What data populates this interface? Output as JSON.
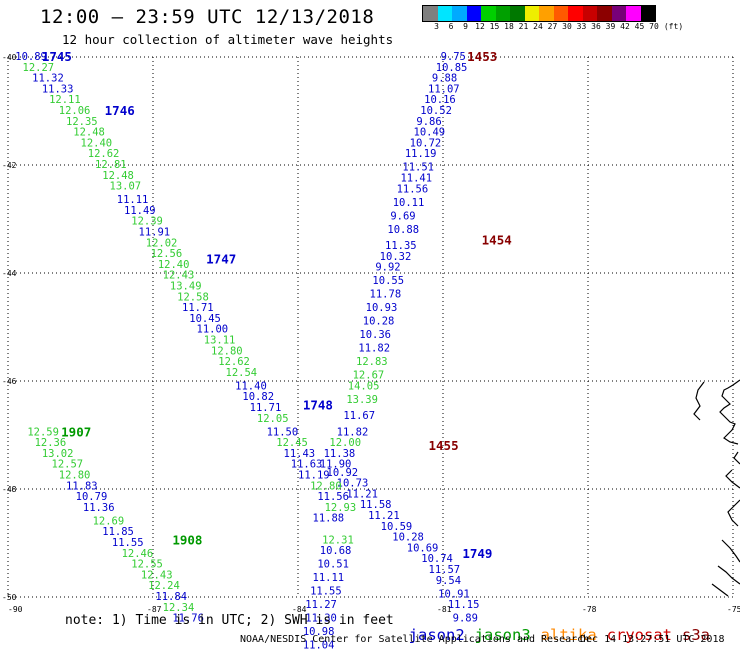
{
  "header": {
    "title": "12:00 — 23:59 UTC 12/13/2018",
    "subtitle": "12 hour collection of altimeter wave heights"
  },
  "color_scale": {
    "colors": [
      "#7f7f7f",
      "#00e5ff",
      "#00aaff",
      "#0000ff",
      "#00d000",
      "#00a000",
      "#007800",
      "#eeee00",
      "#ffa000",
      "#ff5a00",
      "#ff0000",
      "#c80000",
      "#8c0000",
      "#780078",
      "#ff00ff",
      "#000000"
    ],
    "labels": [
      "3",
      "6",
      "9",
      "12",
      "15",
      "18",
      "21",
      "24",
      "27",
      "30",
      "33",
      "36",
      "39",
      "42",
      "45",
      "70",
      "(ft)"
    ]
  },
  "map": {
    "lon_labels": [
      "-90",
      "-87",
      "-84",
      "-81",
      "-78",
      "-75"
    ],
    "lat_labels": [
      "-40",
      "-42",
      "-44",
      "-46",
      "-48",
      "-50"
    ],
    "satellite_colors": {
      "jason2": "#0000cc",
      "jason3": "#009900",
      "altika": "#ff8800",
      "cryosat": "#cc0000",
      "s3a": "#880000"
    },
    "passes": [
      {
        "sat": "s3a",
        "times": [
          {
            "label": "1453",
            "at": [
              -80.5,
              -40.0
            ]
          },
          {
            "label": "1454",
            "at": [
              -80.2,
              -43.4
            ]
          },
          {
            "label": "1455",
            "at": [
              -81.3,
              -47.2
            ]
          }
        ],
        "values": [
          [
            "9.75",
            -81.05,
            -40.0
          ],
          [
            "10.85",
            -81.15,
            -40.2
          ],
          [
            "9.88",
            -81.23,
            -40.4
          ],
          [
            "11.07",
            -81.31,
            -40.6
          ],
          [
            "10.16",
            -81.39,
            -40.8
          ],
          [
            "10.52",
            -81.47,
            -41.0
          ],
          [
            "9.86",
            -81.55,
            -41.2
          ],
          [
            "10.49",
            -81.61,
            -41.4
          ],
          [
            "10.72",
            -81.69,
            -41.6
          ],
          [
            "11.19",
            -81.79,
            -41.8
          ],
          [
            "11.51",
            -81.84,
            -42.05
          ],
          [
            "11.41",
            -81.88,
            -42.25
          ],
          [
            "11.56",
            -81.96,
            -42.45
          ],
          [
            "10.11",
            -82.04,
            -42.7
          ],
          [
            "9.69",
            -82.09,
            -42.95
          ],
          [
            "10.88",
            -82.15,
            -43.2
          ],
          [
            "11.35",
            -82.2,
            -43.5
          ],
          [
            "10.32",
            -82.31,
            -43.7
          ],
          [
            "9.92",
            -82.4,
            -43.9
          ],
          [
            "10.55",
            -82.46,
            -44.15
          ],
          [
            "11.78",
            -82.52,
            -44.4
          ],
          [
            "10.93",
            -82.6,
            -44.65
          ],
          [
            "10.28",
            -82.66,
            -44.9
          ],
          [
            "10.36",
            -82.73,
            -45.15
          ],
          [
            "11.82",
            -82.75,
            -45.4
          ],
          [
            "12.83",
            -82.8,
            -45.65
          ],
          [
            "12.67",
            -82.87,
            -45.9
          ],
          [
            "14.05",
            -82.97,
            -46.1
          ],
          [
            "13.39",
            -83.0,
            -46.35
          ],
          [
            "11.67",
            -83.06,
            -46.65
          ],
          [
            "11.82",
            -83.2,
            -46.95
          ],
          [
            "12.00",
            -83.35,
            -47.15
          ],
          [
            "11.38",
            -83.47,
            -47.35
          ],
          [
            "11.90",
            -83.55,
            -47.55
          ],
          [
            "10.92",
            -83.41,
            -47.7
          ],
          [
            "10.73",
            -83.2,
            -47.9
          ],
          [
            "11.21",
            -83.0,
            -48.1
          ],
          [
            "11.58",
            -82.72,
            -48.3
          ],
          [
            "11.21",
            -82.55,
            -48.5
          ],
          [
            "10.59",
            -82.29,
            -48.7
          ],
          [
            "10.28",
            -82.05,
            -48.9
          ],
          [
            "10.69",
            -81.75,
            -49.1
          ],
          [
            "10.74",
            -81.45,
            -49.3
          ],
          [
            "11.57",
            -81.3,
            -49.5
          ],
          [
            "9.54",
            -81.15,
            -49.7
          ],
          [
            "10.91",
            -81.1,
            -49.95
          ],
          [
            "11.15",
            -80.9,
            -50.15
          ],
          [
            "9.89",
            -80.8,
            -50.4
          ]
        ]
      },
      {
        "sat": "jason2",
        "times": [
          {
            "label": "1745",
            "at": [
              -89.3,
              -40.0
            ]
          },
          {
            "label": "1746",
            "at": [
              -88.0,
              -41.0
            ]
          },
          {
            "label": "1747",
            "at": [
              -85.9,
              -43.75
            ]
          },
          {
            "label": "1748",
            "at": [
              -83.9,
              -46.45
            ]
          },
          {
            "label": "1749",
            "at": [
              -80.6,
              -49.2
            ]
          }
        ],
        "values": [
          [
            "10.89",
            -89.85,
            -40.0
          ],
          [
            "12.27",
            -89.7,
            -40.2
          ],
          [
            "11.32",
            -89.5,
            -40.4
          ],
          [
            "11.33",
            -89.3,
            -40.6
          ],
          [
            "12.11",
            -89.15,
            -40.8
          ],
          [
            "12.06",
            -88.95,
            -41.0
          ],
          [
            "12.35",
            -88.8,
            -41.2
          ],
          [
            "12.48",
            -88.65,
            -41.4
          ],
          [
            "12.40",
            -88.5,
            -41.6
          ],
          [
            "12.62",
            -88.35,
            -41.8
          ],
          [
            "12.81",
            -88.2,
            -42.0
          ],
          [
            "12.48",
            -88.05,
            -42.2
          ],
          [
            "13.07",
            -87.9,
            -42.4
          ],
          [
            "11.11",
            -87.75,
            -42.65
          ],
          [
            "11.49",
            -87.6,
            -42.85
          ],
          [
            "12.39",
            -87.45,
            -43.05
          ],
          [
            "11.91",
            -87.3,
            -43.25
          ],
          [
            "12.02",
            -87.15,
            -43.45
          ],
          [
            "12.56",
            -87.05,
            -43.65
          ],
          [
            "12.40",
            -86.9,
            -43.85
          ],
          [
            "12.43",
            -86.8,
            -44.05
          ],
          [
            "13.49",
            -86.65,
            -44.25
          ],
          [
            "12.58",
            -86.5,
            -44.45
          ],
          [
            "11.71",
            -86.4,
            -44.65
          ],
          [
            "10.45",
            -86.25,
            -44.85
          ],
          [
            "11.00",
            -86.1,
            -45.05
          ],
          [
            "13.11",
            -85.95,
            -45.25
          ],
          [
            "12.80",
            -85.8,
            -45.45
          ],
          [
            "12.62",
            -85.65,
            -45.65
          ],
          [
            "12.54",
            -85.5,
            -45.85
          ],
          [
            "11.40",
            -85.3,
            -46.1
          ],
          [
            "10.82",
            -85.15,
            -46.3
          ],
          [
            "11.71",
            -85.0,
            -46.5
          ],
          [
            "12.05",
            -84.85,
            -46.7
          ],
          [
            "11.50",
            -84.65,
            -46.95
          ],
          [
            "12.45",
            -84.45,
            -47.15
          ],
          [
            "11.43",
            -84.3,
            -47.35
          ],
          [
            "11.63",
            -84.15,
            -47.55
          ],
          [
            "11.19",
            -84.0,
            -47.75
          ],
          [
            "12.80",
            -83.75,
            -47.95
          ],
          [
            "11.56",
            -83.6,
            -48.15
          ],
          [
            "12.93",
            -83.45,
            -48.35
          ],
          [
            "11.88",
            -83.7,
            -48.55
          ],
          [
            "12.31",
            -83.5,
            -48.95
          ],
          [
            "10.68",
            -83.55,
            -49.15
          ],
          [
            "10.51",
            -83.6,
            -49.4
          ],
          [
            "11.11",
            -83.7,
            -49.65
          ],
          [
            "11.55",
            -83.75,
            -49.9
          ],
          [
            "11.27",
            -83.85,
            -50.15
          ],
          [
            "11.30",
            -83.85,
            -50.4
          ],
          [
            "10.98",
            -83.9,
            -50.65
          ],
          [
            "11.04",
            -83.9,
            -50.9
          ]
        ]
      },
      {
        "sat": "jason3",
        "times": [
          {
            "label": "1907",
            "at": [
              -88.9,
              -46.95
            ]
          },
          {
            "label": "1908",
            "at": [
              -86.6,
              -48.95
            ]
          }
        ],
        "values": [
          [
            "12.59",
            -89.6,
            -46.95
          ],
          [
            "12.36",
            -89.45,
            -47.15
          ],
          [
            "13.02",
            -89.3,
            -47.35
          ],
          [
            "12.57",
            -89.1,
            -47.55
          ],
          [
            "12.80",
            -88.95,
            -47.75
          ],
          [
            "11.83",
            -88.8,
            -47.95
          ],
          [
            "10.79",
            -88.6,
            -48.15
          ],
          [
            "11.36",
            -88.45,
            -48.35
          ],
          [
            "12.69",
            -88.25,
            -48.6
          ],
          [
            "11.85",
            -88.05,
            -48.8
          ],
          [
            "11.55",
            -87.85,
            -49.0
          ],
          [
            "12.46",
            -87.65,
            -49.2
          ],
          [
            "12.55",
            -87.45,
            -49.4
          ],
          [
            "12.43",
            -87.25,
            -49.6
          ],
          [
            "12.24",
            -87.1,
            -49.8
          ],
          [
            "11.84",
            -86.95,
            -50.0
          ],
          [
            "12.34",
            -86.8,
            -50.2
          ],
          [
            "11.76",
            -86.6,
            -50.4
          ]
        ]
      }
    ]
  },
  "note": "note: 1) Time is in UTC; 2) SWH is in feet",
  "legend": [
    "jason2",
    "jason3",
    "altika",
    "cryosat",
    "s3a"
  ],
  "footer": {
    "credit": "NOAA/NESDIS Center for Satellite Applications and Research",
    "timestamp": "Dec 14 13:27:51 UTC 2018"
  }
}
